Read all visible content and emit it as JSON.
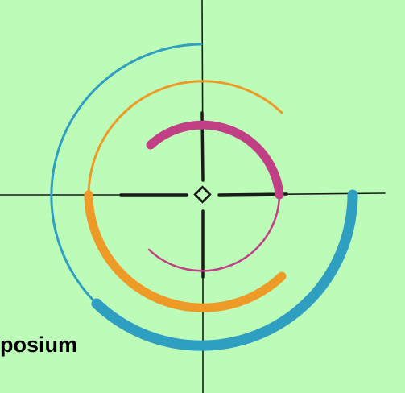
{
  "caption": "posium",
  "colors": {
    "background": "#bdfbb9",
    "crosshair": "#1a1a1a",
    "outer_arc": "#2e9fc0",
    "middle_arc": "#ee9a26",
    "inner_arc": "#c13f85"
  },
  "icons": [
    "crosshair-icon",
    "center-diamond-icon"
  ]
}
